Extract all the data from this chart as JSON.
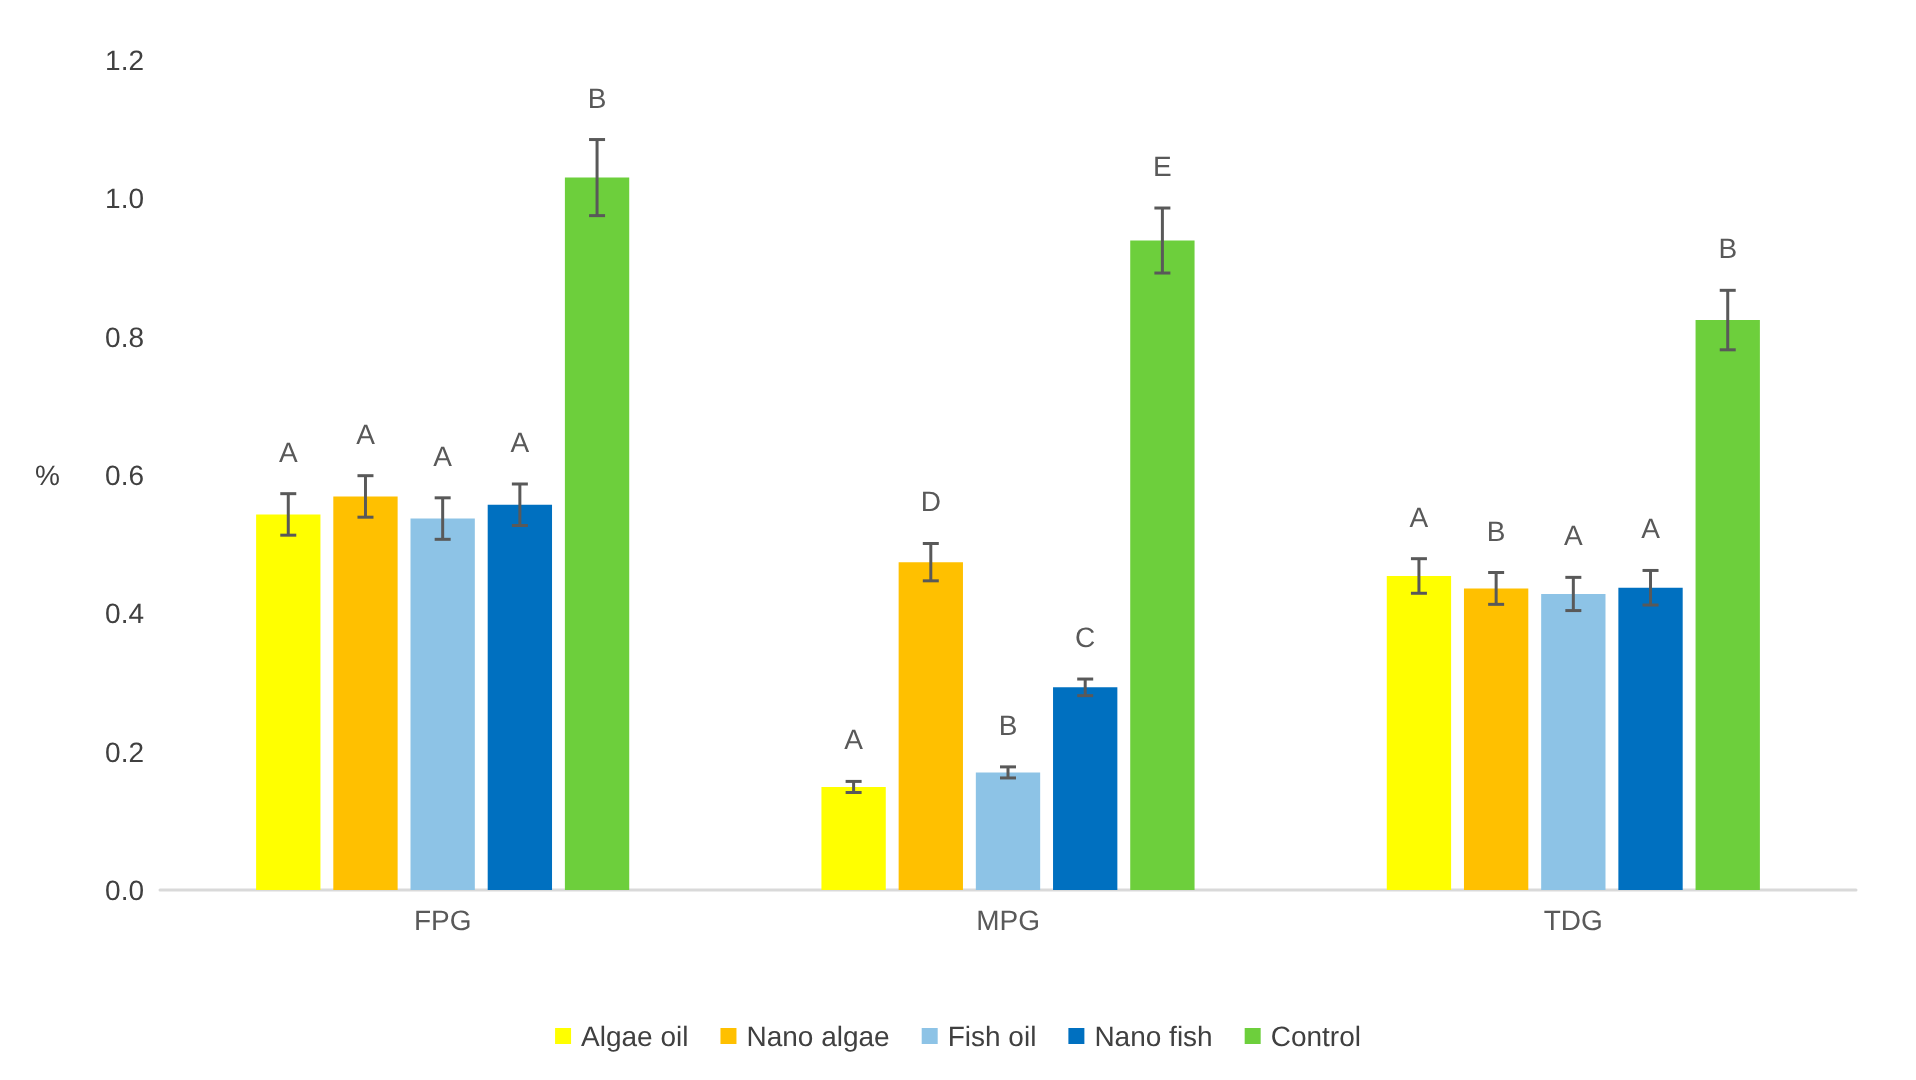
{
  "chart_data": {
    "type": "bar",
    "ylabel": "%",
    "categories": [
      "FPG",
      "MPG",
      "TDG"
    ],
    "series": [
      {
        "name": "Algae oil",
        "color": "#ffff00",
        "values": [
          0.543,
          0.149,
          0.454
        ],
        "errors": [
          0.03,
          0.008,
          0.025
        ],
        "value_labels": [
          "A",
          "A",
          "A"
        ]
      },
      {
        "name": "Nano algae",
        "color": "#ffc000",
        "values": [
          0.569,
          0.474,
          0.436
        ],
        "errors": [
          0.03,
          0.027,
          0.023
        ],
        "value_labels": [
          "A",
          "D",
          "B"
        ]
      },
      {
        "name": "Fish oil",
        "color": "#8dc3e6",
        "values": [
          0.537,
          0.17,
          0.428
        ],
        "errors": [
          0.03,
          0.008,
          0.024
        ],
        "value_labels": [
          "A",
          "B",
          "A"
        ]
      },
      {
        "name": "Nano fish",
        "color": "#0070c0",
        "values": [
          0.557,
          0.293,
          0.437
        ],
        "errors": [
          0.03,
          0.012,
          0.025
        ],
        "value_labels": [
          "A",
          "C",
          "A"
        ]
      },
      {
        "name": "Control",
        "color": "#6dcf3c",
        "values": [
          1.03,
          0.939,
          0.824
        ],
        "errors": [
          0.055,
          0.047,
          0.043
        ],
        "value_labels": [
          "B",
          "E",
          "B"
        ]
      }
    ],
    "ylim": [
      0,
      1.2
    ],
    "yticks": [
      {
        "value": 0,
        "label": "0.0"
      },
      {
        "value": 0.2,
        "label": "0.2"
      },
      {
        "value": 0.4,
        "label": "0.4"
      },
      {
        "value": 0.6,
        "label": "0.6"
      },
      {
        "value": 0.8,
        "label": "0.8"
      },
      {
        "value": 1,
        "label": "1.0"
      },
      {
        "value": 1.2,
        "label": "1.2"
      }
    ],
    "grid": false,
    "legend": "bottom"
  }
}
